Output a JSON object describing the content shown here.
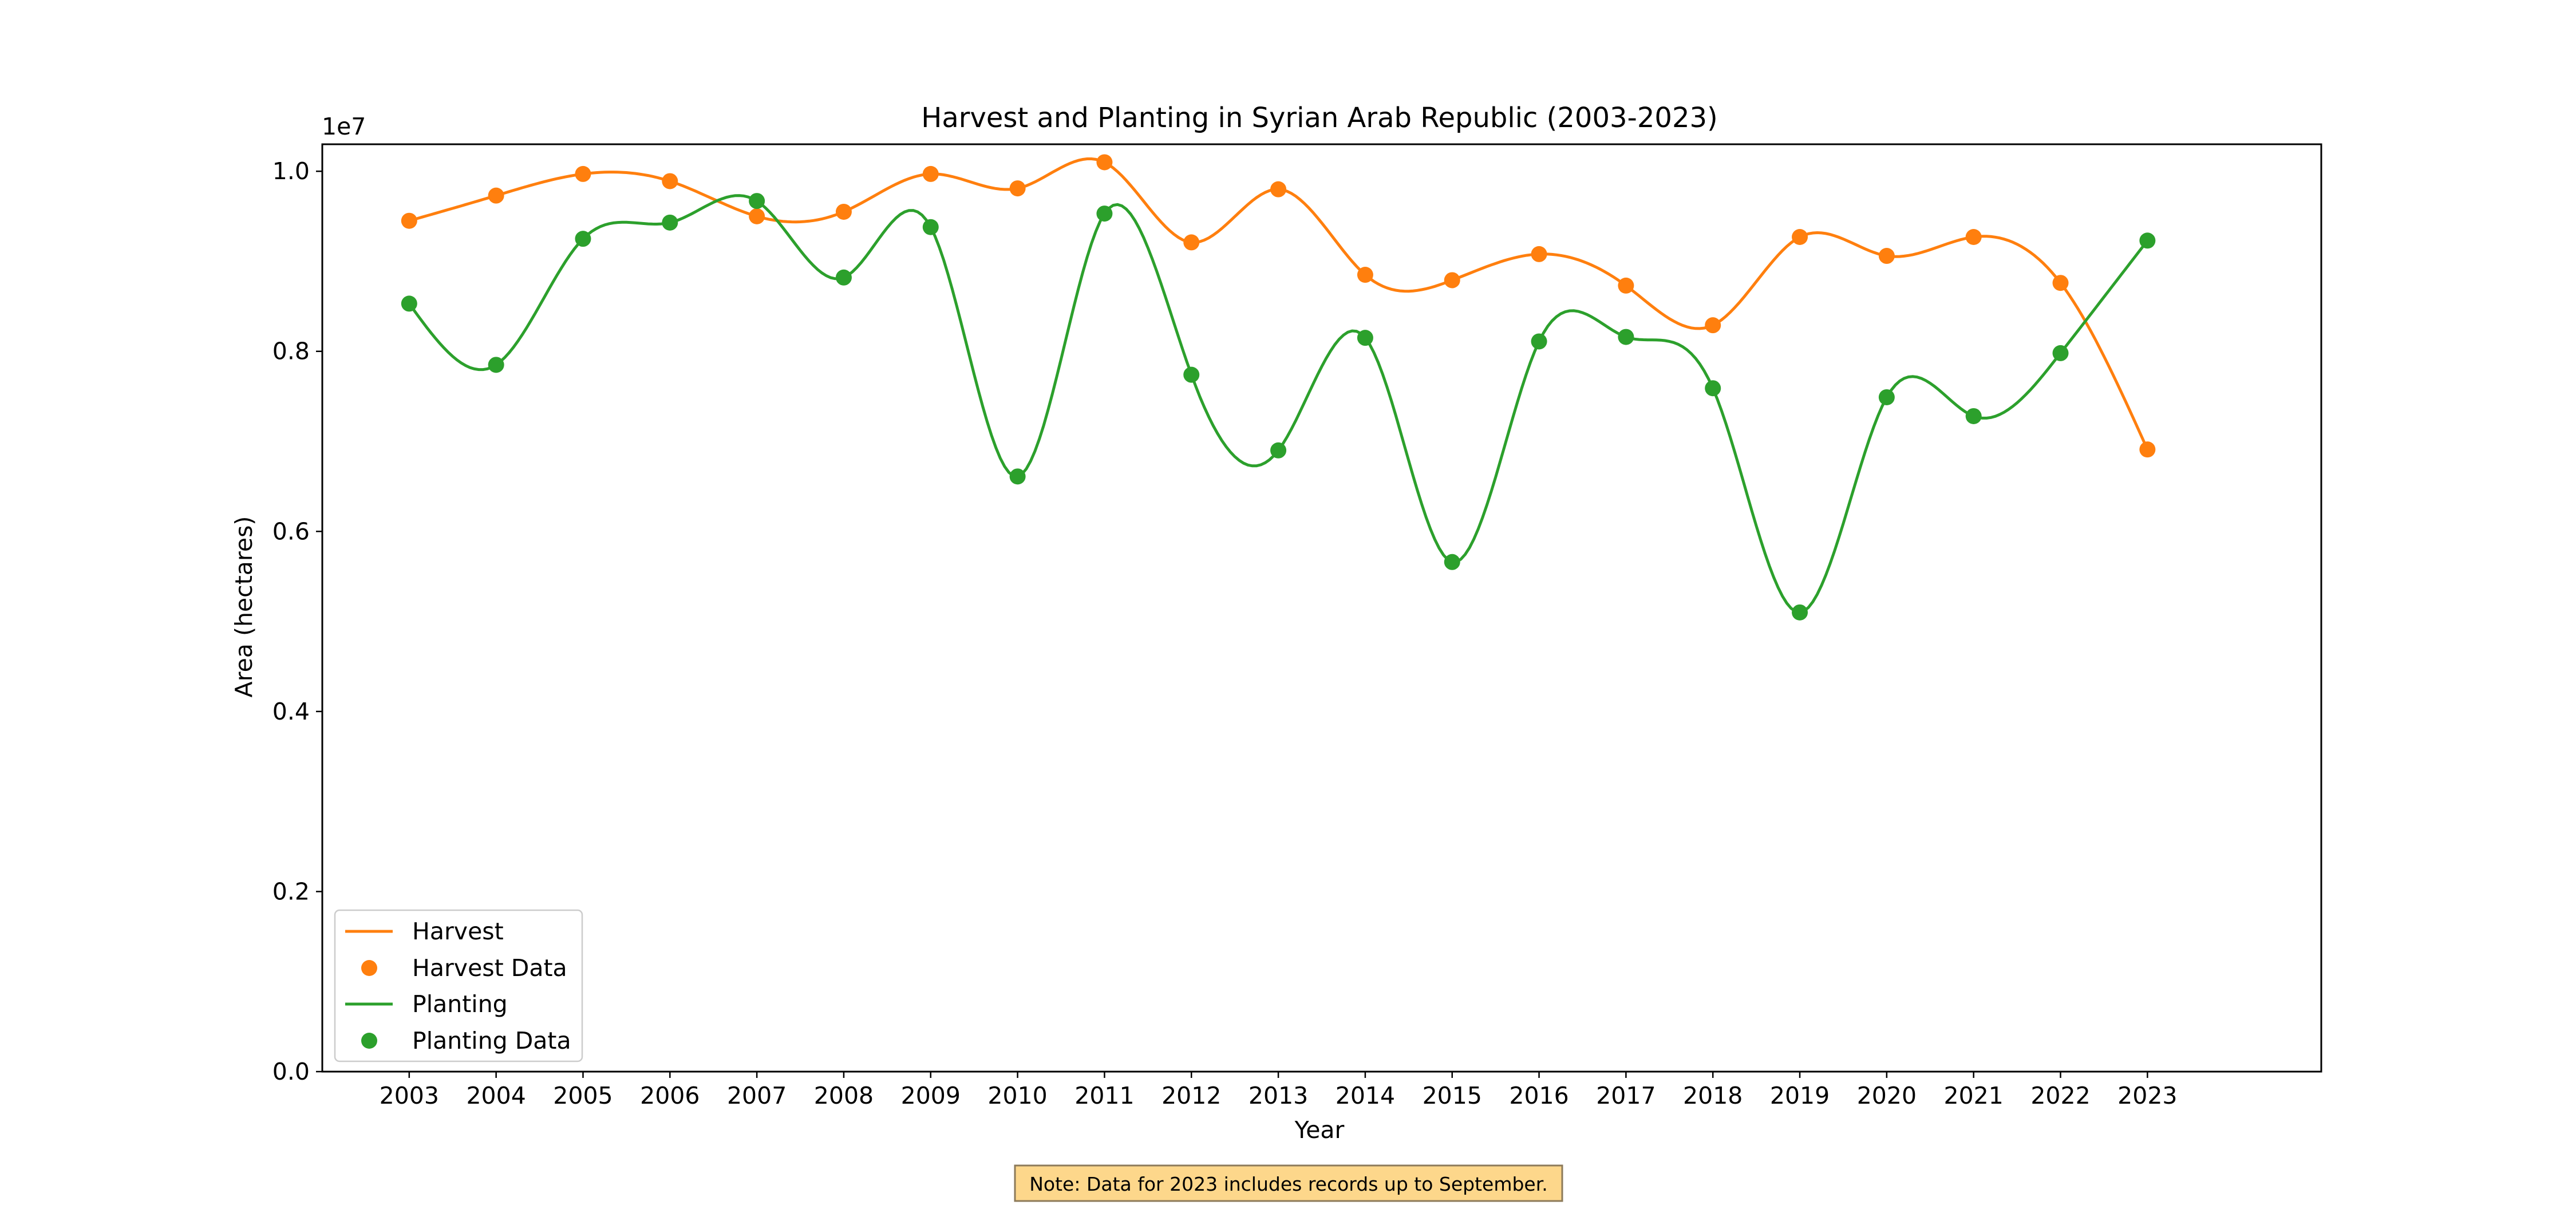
{
  "chart_data": {
    "type": "line",
    "title": "Harvest and Planting in Syrian Arab Republic (2003-2023)",
    "xlabel": "Year",
    "ylabel": "Area (hectares)",
    "y_offset_label": "1e7",
    "x": [
      2003,
      2004,
      2005,
      2006,
      2007,
      2008,
      2009,
      2010,
      2011,
      2012,
      2013,
      2014,
      2015,
      2016,
      2017,
      2018,
      2019,
      2020,
      2021,
      2022,
      2023
    ],
    "x_ticks": [
      "2003",
      "2004",
      "2005",
      "2006",
      "2007",
      "2008",
      "2009",
      "2010",
      "2011",
      "2012",
      "2013",
      "2014",
      "2015",
      "2016",
      "2017",
      "2018",
      "2019",
      "2020",
      "2021",
      "2022",
      "2023"
    ],
    "y_ticks": [
      {
        "value": 0,
        "label": "0.0"
      },
      {
        "value": 2000000,
        "label": "0.2"
      },
      {
        "value": 4000000,
        "label": "0.4"
      },
      {
        "value": 6000000,
        "label": "0.6"
      },
      {
        "value": 8000000,
        "label": "0.8"
      },
      {
        "value": 10000000,
        "label": "1.0"
      }
    ],
    "ylim": [
      0,
      10300000
    ],
    "xlim": [
      2002,
      2025
    ],
    "grid": false,
    "legend_position": "lower-left",
    "series": [
      {
        "name": "Harvest",
        "marker_label": "Harvest Data",
        "color": "#ff7f0e",
        "values": [
          9450000,
          9730000,
          9970000,
          9890000,
          9500000,
          9550000,
          9970000,
          9810000,
          10100000,
          9210000,
          9800000,
          8850000,
          8790000,
          9080000,
          8730000,
          8290000,
          9270000,
          9060000,
          9270000,
          8760000,
          6910000
        ]
      },
      {
        "name": "Planting",
        "marker_label": "Planting Data",
        "color": "#2ca02c",
        "values": [
          8530000,
          7850000,
          9250000,
          9430000,
          9670000,
          8820000,
          9380000,
          6610000,
          9530000,
          7740000,
          6900000,
          8150000,
          5660000,
          8110000,
          8160000,
          7590000,
          5100000,
          7490000,
          7280000,
          7980000,
          9230000
        ]
      }
    ],
    "annotation": "Note: Data for 2023 includes records up to September."
  }
}
